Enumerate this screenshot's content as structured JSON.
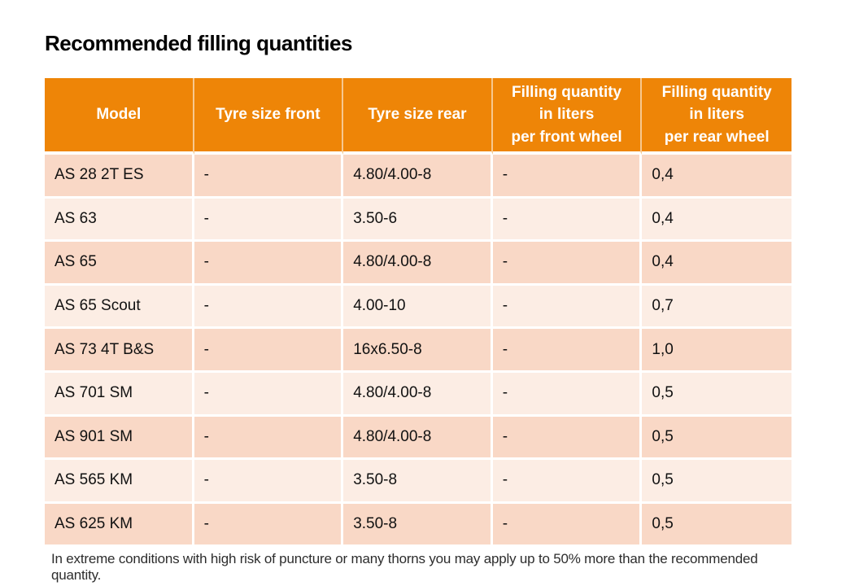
{
  "page": {
    "title": "Recommended filling quantities",
    "footnote": "In extreme conditions with high risk of puncture or many thorns you may apply up to 50% more than the recommended quantity."
  },
  "table": {
    "columns": [
      "Model",
      "Tyre size front",
      "Tyre size rear",
      "Filling quantity\nin liters\nper front wheel",
      "Filling quantity\nin liters\nper rear wheel"
    ],
    "rows": [
      [
        "AS 28 2T ES",
        "-",
        "4.80/4.00-8",
        "-",
        "0,4"
      ],
      [
        "AS 63",
        "-",
        "3.50-6",
        "-",
        "0,4"
      ],
      [
        "AS 65",
        "-",
        "4.80/4.00-8",
        "-",
        "0,4"
      ],
      [
        "AS 65 Scout",
        "-",
        "4.00-10",
        "-",
        "0,7"
      ],
      [
        "AS 73 4T B&S",
        "-",
        "16x6.50-8",
        "-",
        "1,0"
      ],
      [
        "AS 701 SM",
        "-",
        "4.80/4.00-8",
        "-",
        "0,5"
      ],
      [
        "AS 901 SM",
        "-",
        "4.80/4.00-8",
        "-",
        "0,5"
      ],
      [
        "AS 565 KM",
        "-",
        "3.50-8",
        "-",
        "0,5"
      ],
      [
        "AS 625 KM",
        "-",
        "3.50-8",
        "-",
        "0,5"
      ]
    ]
  },
  "colors": {
    "header_bg": "#EE8507",
    "header_text": "#FFFFFF",
    "row_odd_bg": "#F9D8C6",
    "row_even_bg": "#FCEDE4",
    "cell_text": "#111111"
  }
}
